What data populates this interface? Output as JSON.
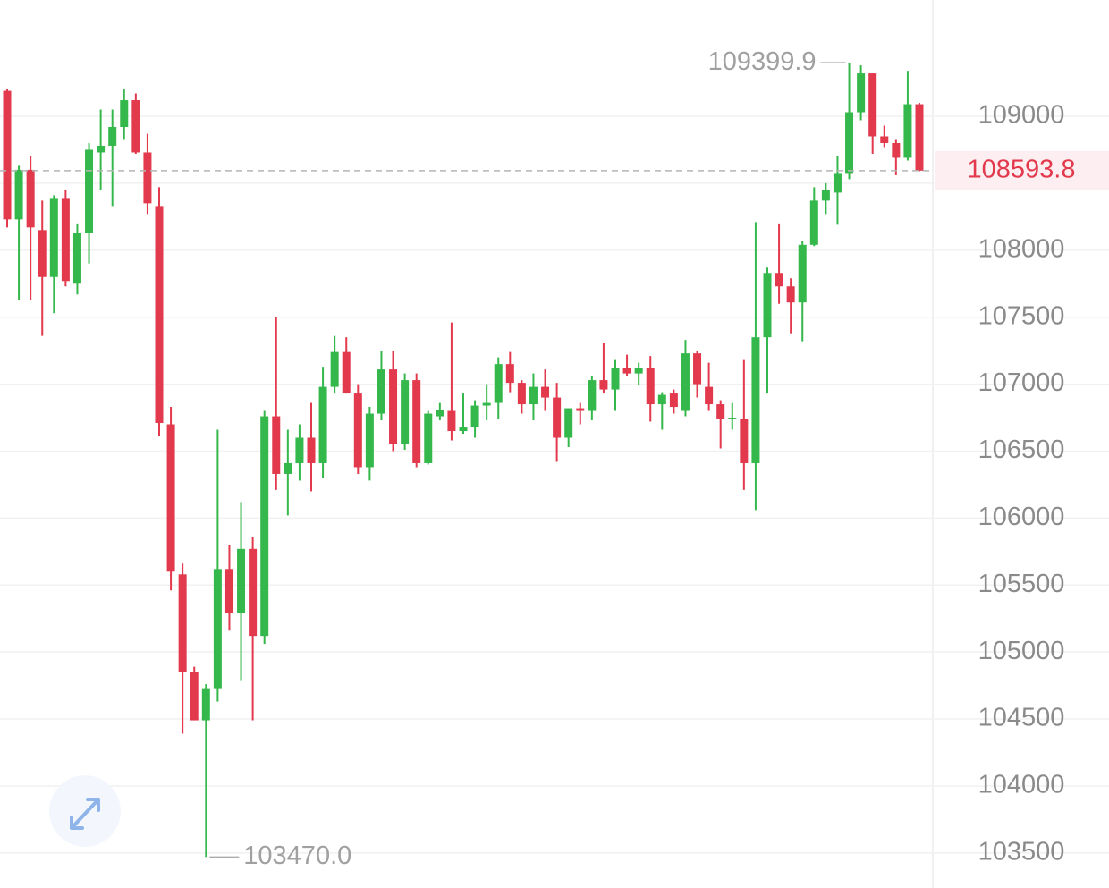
{
  "chart_data": {
    "type": "candlestick",
    "up_color": "#35b84b",
    "down_color": "#e2394d",
    "grid": true,
    "ylim": [
      103292,
      109868
    ],
    "yticks": [
      103500,
      104000,
      104500,
      105000,
      105500,
      106000,
      106500,
      107000,
      107500,
      108000,
      108500,
      109000
    ],
    "max_label": {
      "value": 109399.9,
      "label": "109399.9"
    },
    "min_label": {
      "value": 103470,
      "label": "103470.0"
    },
    "series": [
      {
        "open": [
          109190,
          108230,
          108600,
          108150,
          107800,
          108390,
          107750,
          108130,
          108730,
          108780,
          108920,
          109120,
          108730,
          108330,
          106700,
          105580,
          104850,
          104490,
          104730,
          105620,
          105290,
          105770,
          105120,
          106760,
          106330,
          106410,
          106600,
          106410,
          106980,
          107240,
          106930,
          106380,
          106780,
          107110,
          106550,
          107030,
          106410,
          106760,
          106800,
          106650,
          106680,
          106840,
          106860,
          107150,
          107010,
          106850,
          106980,
          106900,
          106600,
          106820,
          106800,
          107030,
          106960,
          107120,
          107080,
          107120,
          106850,
          106930,
          106800,
          107230,
          106980,
          106850,
          106740,
          106740,
          106410,
          107350,
          107830,
          107730,
          107610,
          108040,
          108370,
          108430,
          108570,
          109030,
          109320,
          108850,
          108800,
          108690,
          109090
        ],
        "high": [
          109200,
          108630,
          108700,
          108370,
          108410,
          108450,
          108200,
          108800,
          109050,
          109050,
          109200,
          109170,
          108870,
          108470,
          106830,
          105660,
          104890,
          104760,
          106660,
          105800,
          106120,
          105860,
          106800,
          107500,
          106660,
          106700,
          106860,
          107130,
          107360,
          107350,
          107000,
          106830,
          107250,
          107250,
          107080,
          107080,
          106800,
          106860,
          107460,
          106930,
          106880,
          107000,
          107200,
          107240,
          107030,
          107080,
          107110,
          107010,
          106820,
          106860,
          107060,
          107310,
          107180,
          107220,
          107160,
          107210,
          106940,
          106960,
          107330,
          107250,
          107160,
          106880,
          106860,
          107180,
          108210,
          107870,
          108200,
          107790,
          108070,
          108470,
          108500,
          108700,
          109399.9,
          109380,
          109320,
          108930,
          108830,
          109340,
          109100
        ],
        "low": [
          108170,
          107630,
          107630,
          107360,
          107530,
          107730,
          107670,
          107900,
          108450,
          108330,
          108830,
          108720,
          108270,
          106610,
          105460,
          104390,
          104490,
          103470,
          104630,
          105160,
          104790,
          104490,
          105060,
          106210,
          106020,
          106280,
          106200,
          106300,
          106930,
          106930,
          106330,
          106280,
          106730,
          106500,
          106510,
          106380,
          106400,
          106730,
          106580,
          106630,
          106600,
          106730,
          106740,
          106940,
          106780,
          106730,
          106800,
          106420,
          106530,
          106700,
          106730,
          106930,
          106800,
          107060,
          106990,
          106720,
          106660,
          106780,
          106760,
          106900,
          106800,
          106520,
          106660,
          106210,
          106060,
          106930,
          107600,
          107380,
          107320,
          108030,
          108270,
          108190,
          108530,
          108970,
          108720,
          108770,
          108560,
          108670,
          108590
        ],
        "close": [
          108230,
          108600,
          108170,
          107800,
          108390,
          107770,
          108130,
          108750,
          108780,
          108920,
          109120,
          108730,
          108350,
          106710,
          105600,
          104850,
          104490,
          104730,
          105620,
          105290,
          105770,
          105120,
          106760,
          106330,
          106410,
          106600,
          106410,
          106980,
          107240,
          106930,
          106380,
          106780,
          107110,
          106550,
          107030,
          106410,
          106780,
          106810,
          106650,
          106680,
          106840,
          106860,
          107150,
          107010,
          106850,
          106980,
          106900,
          106600,
          106820,
          106800,
          107030,
          106960,
          107120,
          107080,
          107120,
          106850,
          106920,
          106830,
          107230,
          107000,
          106850,
          106740,
          106750,
          106410,
          107350,
          107830,
          107730,
          107610,
          108040,
          108370,
          108450,
          108570,
          109030,
          109320,
          108850,
          108800,
          108690,
          109090,
          108593.8
        ]
      }
    ]
  }
}
